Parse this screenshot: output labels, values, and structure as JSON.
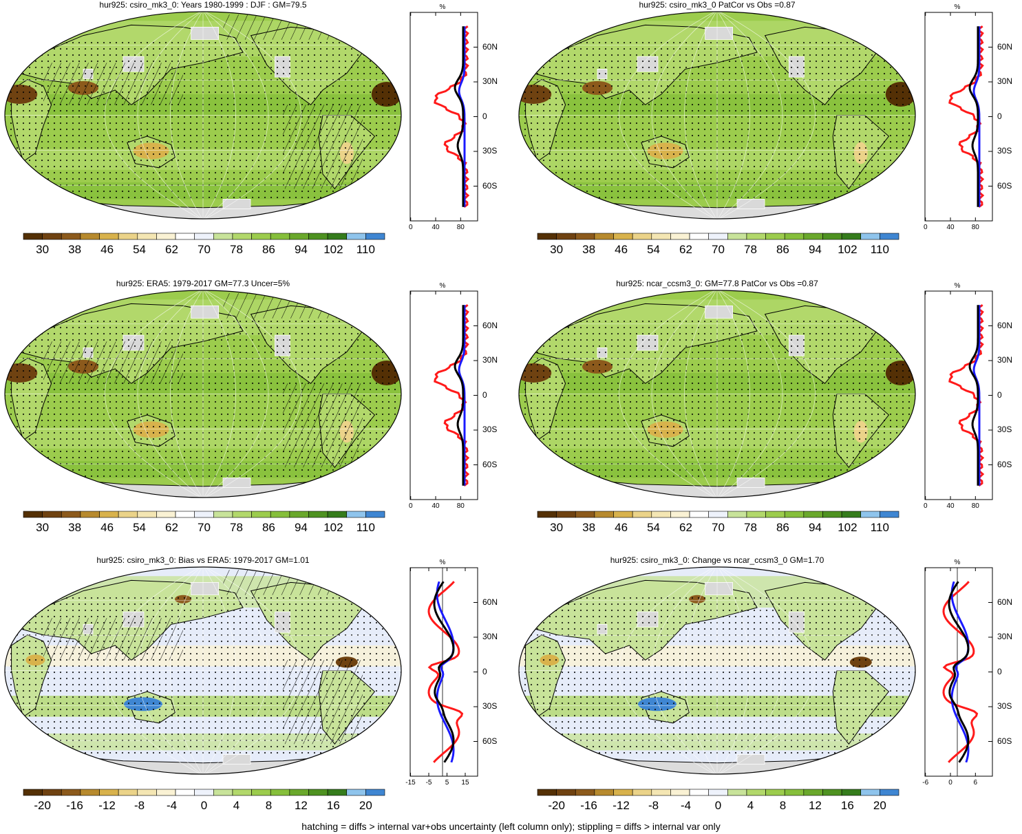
{
  "panels": [
    {
      "id": "p1",
      "title": "hur925: csiro_mk3_0: Years 1980-1999 : DJF : GM=79.5",
      "colorbar": {
        "labels": [
          "30",
          "38",
          "46",
          "54",
          "62",
          "70",
          "78",
          "86",
          "94",
          "102",
          "110"
        ],
        "scheme": "absolute"
      },
      "zonal": {
        "xticks": [
          "0",
          "40",
          "80"
        ],
        "unit": "%",
        "lat_labels": [
          "60N",
          "30N",
          "0",
          "30S",
          "60S"
        ]
      },
      "hatching": true
    },
    {
      "id": "p2",
      "title": "hur925: csiro_mk3_0 PatCor vs Obs =0.87",
      "colorbar": {
        "labels": [
          "30",
          "38",
          "46",
          "54",
          "62",
          "70",
          "78",
          "86",
          "94",
          "102",
          "110"
        ],
        "scheme": "absolute"
      },
      "zonal": {
        "xticks": [
          "0",
          "40",
          "80"
        ],
        "unit": "%",
        "lat_labels": [
          "60N",
          "30N",
          "0",
          "30S",
          "60S"
        ]
      },
      "hatching": false
    },
    {
      "id": "p3",
      "title": "hur925: ERA5: 1979-2017 GM=77.3 Uncer=5%",
      "colorbar": {
        "labels": [
          "30",
          "38",
          "46",
          "54",
          "62",
          "70",
          "78",
          "86",
          "94",
          "102",
          "110"
        ],
        "scheme": "absolute"
      },
      "zonal": {
        "xticks": [
          "0",
          "40",
          "80"
        ],
        "unit": "%",
        "lat_labels": [
          "60N",
          "30N",
          "0",
          "30S",
          "60S"
        ]
      },
      "hatching": true
    },
    {
      "id": "p4",
      "title": "hur925: ncar_ccsm3_0: GM=77.8 PatCor vs Obs =0.87",
      "colorbar": {
        "labels": [
          "30",
          "38",
          "46",
          "54",
          "62",
          "70",
          "78",
          "86",
          "94",
          "102",
          "110"
        ],
        "scheme": "absolute"
      },
      "zonal": {
        "xticks": [
          "0",
          "40",
          "80"
        ],
        "unit": "%",
        "lat_labels": [
          "60N",
          "30N",
          "0",
          "30S",
          "60S"
        ]
      },
      "hatching": false
    },
    {
      "id": "p5",
      "title": "hur925: csiro_mk3_0: Bias vs ERA5: 1979-2017 GM=1.01",
      "colorbar": {
        "labels": [
          "-20",
          "-16",
          "-12",
          "-8",
          "-4",
          "0",
          "4",
          "8",
          "12",
          "16",
          "20"
        ],
        "scheme": "diff"
      },
      "zonal": {
        "xticks": [
          "-15",
          "-5",
          "5",
          "15"
        ],
        "unit": "%",
        "lat_labels": [
          "60N",
          "30N",
          "0",
          "30S",
          "60S"
        ]
      },
      "hatching": true
    },
    {
      "id": "p6",
      "title": "hur925: csiro_mk3_0: Change vs ncar_ccsm3_0 GM=1.70",
      "colorbar": {
        "labels": [
          "-20",
          "-16",
          "-12",
          "-8",
          "-4",
          "0",
          "4",
          "8",
          "12",
          "16",
          "20"
        ],
        "scheme": "diff"
      },
      "zonal": {
        "xticks": [
          "-6",
          "0",
          "6"
        ],
        "unit": "%",
        "lat_labels": [
          "60N",
          "30N",
          "0",
          "30S",
          "60S"
        ]
      },
      "hatching": false
    }
  ],
  "palettes": {
    "absolute": [
      "#543005",
      "#6f4211",
      "#8c5a1c",
      "#b78a2e",
      "#d8b24c",
      "#ebd389",
      "#f4e6b3",
      "#faf2d4",
      "#ffffff",
      "#eef2fb",
      "#c8e39a",
      "#b2d86b",
      "#9ccc4d",
      "#86bf3b",
      "#6aa82c",
      "#4e9221",
      "#357c1c",
      "#8fc4ec",
      "#3f86d2"
    ],
    "diff": [
      "#543005",
      "#6f4211",
      "#8c5a1c",
      "#b78a2e",
      "#d8b24c",
      "#ebd389",
      "#f4e6b3",
      "#faf2d4",
      "#ffffff",
      "#eef2fb",
      "#c8e39a",
      "#b2d86b",
      "#9ccc4d",
      "#86bf3b",
      "#6aa82c",
      "#4e9221",
      "#357c1c",
      "#8fc4ec",
      "#3f86d2"
    ]
  },
  "line_colors": {
    "model": "#000000",
    "obs": "#1a1aff",
    "other": "#ff1a1a"
  },
  "footer": "hatching = diffs > internal var+obs uncertainty (left column only); stippling = diffs > internal var only"
}
